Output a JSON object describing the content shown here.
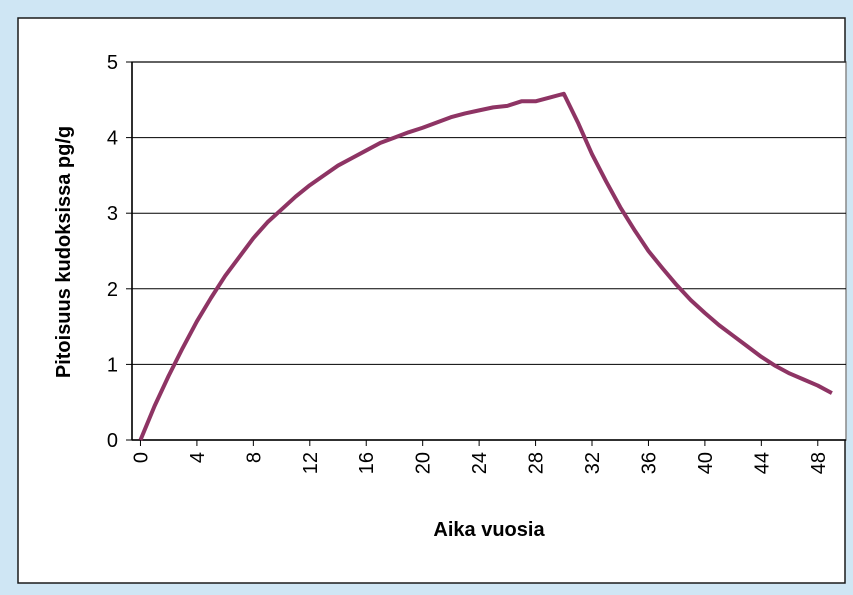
{
  "chart_data": {
    "type": "line",
    "xlabel": "Aika vuosia",
    "ylabel": "Pitoisuus kudoksissa pg/g",
    "x": [
      0,
      1,
      2,
      3,
      4,
      5,
      6,
      7,
      8,
      9,
      10,
      11,
      12,
      13,
      14,
      15,
      16,
      17,
      18,
      19,
      20,
      21,
      22,
      23,
      24,
      25,
      26,
      27,
      28,
      29,
      30,
      31,
      32,
      33,
      34,
      35,
      36,
      37,
      38,
      39,
      40,
      41,
      42,
      43,
      44,
      45,
      46,
      47,
      48,
      49
    ],
    "series": [
      {
        "color": "#8e3464",
        "values": [
          0,
          0.45,
          0.85,
          1.22,
          1.57,
          1.88,
          2.17,
          2.42,
          2.67,
          2.88,
          3.05,
          3.22,
          3.37,
          3.5,
          3.63,
          3.73,
          3.83,
          3.93,
          4.0,
          4.07,
          4.13,
          4.2,
          4.27,
          4.32,
          4.36,
          4.4,
          4.42,
          4.48,
          4.48,
          4.53,
          4.58,
          4.2,
          3.78,
          3.42,
          3.08,
          2.78,
          2.5,
          2.27,
          2.05,
          1.85,
          1.68,
          1.52,
          1.38,
          1.24,
          1.1,
          0.98,
          0.88,
          0.8,
          0.72,
          0.62
        ]
      }
    ],
    "xlim": [
      -0.6,
      50
    ],
    "xticks": [
      0,
      4,
      8,
      12,
      16,
      20,
      24,
      28,
      32,
      36,
      40,
      44,
      48
    ],
    "ylim": [
      0,
      5
    ],
    "yticks": [
      0,
      1,
      2,
      3,
      4,
      5
    ],
    "grid": true
  }
}
